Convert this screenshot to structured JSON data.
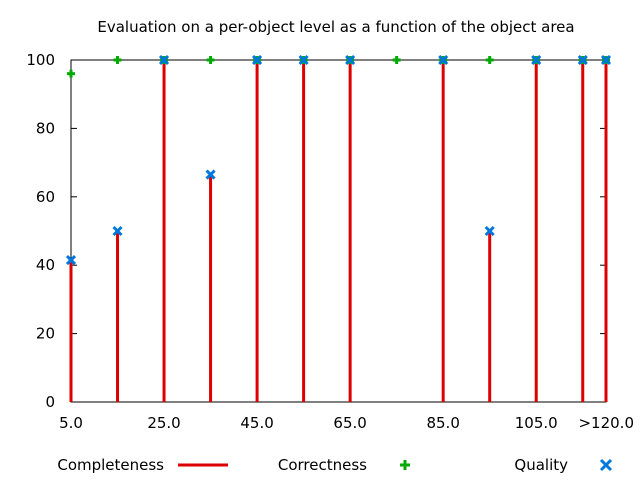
{
  "chart_data": {
    "type": "bar",
    "title": "Evaluation on a per-object level as a function of the object area",
    "xlabel": "",
    "ylabel": "",
    "x_range": [
      5,
      120
    ],
    "x_ticks": [
      5,
      25,
      45,
      65,
      85,
      105,
      120
    ],
    "x_tick_labels": [
      "5.0",
      "25.0",
      "45.0",
      "65.0",
      "85.0",
      "105.0",
      ">120.0"
    ],
    "ylim": [
      0,
      100
    ],
    "y_ticks": [
      0,
      20,
      40,
      60,
      80,
      100
    ],
    "y_tick_labels": [
      "0",
      "20",
      "40",
      "60",
      "80",
      "100"
    ],
    "grid": false,
    "legend_position": "bottom",
    "x": [
      5,
      15,
      25,
      35,
      45,
      55,
      65,
      75,
      85,
      95,
      105,
      115,
      120
    ],
    "series": [
      {
        "name": "Completeness",
        "type": "impulse",
        "color": "#dd0000",
        "values": [
          41,
          50,
          100,
          66.7,
          100,
          100,
          100,
          null,
          100,
          50,
          100,
          100,
          100
        ]
      },
      {
        "name": "Correctness",
        "type": "point-plus",
        "color": "#00aa00",
        "values": [
          96,
          100,
          100,
          100,
          100,
          100,
          100,
          100,
          100,
          100,
          100,
          100,
          100
        ]
      },
      {
        "name": "Quality",
        "type": "point-cross",
        "color": "#0077dd",
        "values": [
          41.5,
          50,
          100,
          66.5,
          100,
          100,
          100,
          null,
          100,
          50,
          100,
          100,
          100
        ]
      }
    ]
  }
}
